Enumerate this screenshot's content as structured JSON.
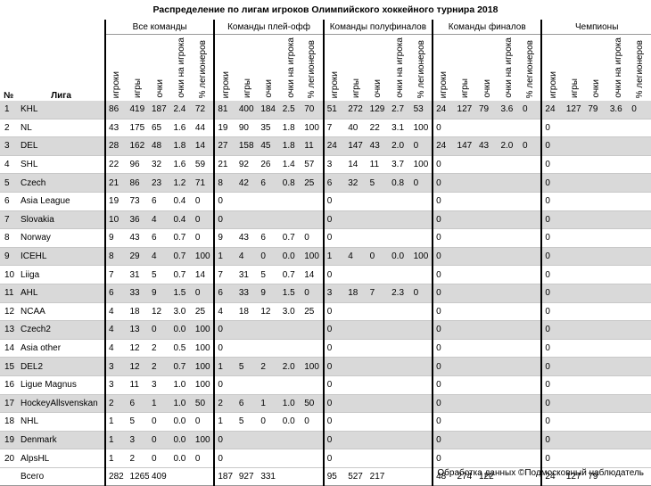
{
  "title": "Распределение по лигам игроков Олимпийского хоккейного турнира 2018",
  "columns": {
    "num": "№",
    "league": "Лига",
    "groups": [
      "Все команды",
      "Команды плей-офф",
      "Команды полуфиналов",
      "Команды финалов",
      "Чемпионы"
    ],
    "sub": [
      "игроки",
      "игры",
      "очки",
      "очки на игрока",
      "% легионеров"
    ]
  },
  "rows": [
    {
      "num": "1",
      "league": "KHL",
      "groups": [
        [
          "86",
          "419",
          "187",
          "2.4",
          "72"
        ],
        [
          "81",
          "400",
          "184",
          "2.5",
          "70"
        ],
        [
          "51",
          "272",
          "129",
          "2.7",
          "53"
        ],
        [
          "24",
          "127",
          "79",
          "3.6",
          "0"
        ],
        [
          "24",
          "127",
          "79",
          "3.6",
          "0"
        ]
      ]
    },
    {
      "num": "2",
      "league": "NL",
      "groups": [
        [
          "43",
          "175",
          "65",
          "1.6",
          "44"
        ],
        [
          "19",
          "90",
          "35",
          "1.8",
          "100"
        ],
        [
          "7",
          "40",
          "22",
          "3.1",
          "100"
        ],
        [
          "0"
        ],
        [
          "0"
        ]
      ]
    },
    {
      "num": "3",
      "league": "DEL",
      "groups": [
        [
          "28",
          "162",
          "48",
          "1.8",
          "14"
        ],
        [
          "27",
          "158",
          "45",
          "1.8",
          "11"
        ],
        [
          "24",
          "147",
          "43",
          "2.0",
          "0"
        ],
        [
          "24",
          "147",
          "43",
          "2.0",
          "0"
        ],
        [
          "0"
        ]
      ]
    },
    {
      "num": "4",
      "league": "SHL",
      "groups": [
        [
          "22",
          "96",
          "32",
          "1.6",
          "59"
        ],
        [
          "21",
          "92",
          "26",
          "1.4",
          "57"
        ],
        [
          "3",
          "14",
          "11",
          "3.7",
          "100"
        ],
        [
          "0"
        ],
        [
          "0"
        ]
      ]
    },
    {
      "num": "5",
      "league": "Czech",
      "groups": [
        [
          "21",
          "86",
          "23",
          "1.2",
          "71"
        ],
        [
          "8",
          "42",
          "6",
          "0.8",
          "25"
        ],
        [
          "6",
          "32",
          "5",
          "0.8",
          "0"
        ],
        [
          "0"
        ],
        [
          "0"
        ]
      ]
    },
    {
      "num": "6",
      "league": "Asia League",
      "groups": [
        [
          "19",
          "73",
          "6",
          "0.4",
          "0"
        ],
        [
          "0"
        ],
        [
          "0"
        ],
        [
          "0"
        ],
        [
          "0"
        ]
      ]
    },
    {
      "num": "7",
      "league": "Slovakia",
      "groups": [
        [
          "10",
          "36",
          "4",
          "0.4",
          "0"
        ],
        [
          "0"
        ],
        [
          "0"
        ],
        [
          "0"
        ],
        [
          "0"
        ]
      ]
    },
    {
      "num": "8",
      "league": "Norway",
      "groups": [
        [
          "9",
          "43",
          "6",
          "0.7",
          "0"
        ],
        [
          "9",
          "43",
          "6",
          "0.7",
          "0"
        ],
        [
          "0"
        ],
        [
          "0"
        ],
        [
          "0"
        ]
      ]
    },
    {
      "num": "9",
      "league": "ICEHL",
      "groups": [
        [
          "8",
          "29",
          "4",
          "0.7",
          "100"
        ],
        [
          "1",
          "4",
          "0",
          "0.0",
          "100"
        ],
        [
          "1",
          "4",
          "0",
          "0.0",
          "100"
        ],
        [
          "0"
        ],
        [
          "0"
        ]
      ]
    },
    {
      "num": "10",
      "league": "Liiga",
      "groups": [
        [
          "7",
          "31",
          "5",
          "0.7",
          "14"
        ],
        [
          "7",
          "31",
          "5",
          "0.7",
          "14"
        ],
        [
          "0"
        ],
        [
          "0"
        ],
        [
          "0"
        ]
      ]
    },
    {
      "num": "11",
      "league": "AHL",
      "groups": [
        [
          "6",
          "33",
          "9",
          "1.5",
          "0"
        ],
        [
          "6",
          "33",
          "9",
          "1.5",
          "0"
        ],
        [
          "3",
          "18",
          "7",
          "2.3",
          "0"
        ],
        [
          "0"
        ],
        [
          "0"
        ]
      ]
    },
    {
      "num": "12",
      "league": "NCAA",
      "groups": [
        [
          "4",
          "18",
          "12",
          "3.0",
          "25"
        ],
        [
          "4",
          "18",
          "12",
          "3.0",
          "25"
        ],
        [
          "0"
        ],
        [
          "0"
        ],
        [
          "0"
        ]
      ]
    },
    {
      "num": "13",
      "league": "Czech2",
      "groups": [
        [
          "4",
          "13",
          "0",
          "0.0",
          "100"
        ],
        [
          "0"
        ],
        [
          "0"
        ],
        [
          "0"
        ],
        [
          "0"
        ]
      ]
    },
    {
      "num": "14",
      "league": "Asia other",
      "groups": [
        [
          "4",
          "12",
          "2",
          "0.5",
          "100"
        ],
        [
          "0"
        ],
        [
          "0"
        ],
        [
          "0"
        ],
        [
          "0"
        ]
      ]
    },
    {
      "num": "15",
      "league": "DEL2",
      "groups": [
        [
          "3",
          "12",
          "2",
          "0.7",
          "100"
        ],
        [
          "1",
          "5",
          "2",
          "2.0",
          "100"
        ],
        [
          "0"
        ],
        [
          "0"
        ],
        [
          "0"
        ]
      ]
    },
    {
      "num": "16",
      "league": "Ligue Magnus",
      "groups": [
        [
          "3",
          "11",
          "3",
          "1.0",
          "100"
        ],
        [
          "0"
        ],
        [
          "0"
        ],
        [
          "0"
        ],
        [
          "0"
        ]
      ]
    },
    {
      "num": "17",
      "league": "HockeyAllsvenskan",
      "groups": [
        [
          "2",
          "6",
          "1",
          "1.0",
          "50"
        ],
        [
          "2",
          "6",
          "1",
          "1.0",
          "50"
        ],
        [
          "0"
        ],
        [
          "0"
        ],
        [
          "0"
        ]
      ]
    },
    {
      "num": "18",
      "league": "NHL",
      "groups": [
        [
          "1",
          "5",
          "0",
          "0.0",
          "0"
        ],
        [
          "1",
          "5",
          "0",
          "0.0",
          "0"
        ],
        [
          "0"
        ],
        [
          "0"
        ],
        [
          "0"
        ]
      ]
    },
    {
      "num": "19",
      "league": "Denmark",
      "groups": [
        [
          "1",
          "3",
          "0",
          "0.0",
          "100"
        ],
        [
          "0"
        ],
        [
          "0"
        ],
        [
          "0"
        ],
        [
          "0"
        ]
      ]
    },
    {
      "num": "20",
      "league": "AlpsHL",
      "groups": [
        [
          "1",
          "2",
          "0",
          "0.0",
          "0"
        ],
        [
          "0"
        ],
        [
          "0"
        ],
        [
          "0"
        ],
        [
          "0"
        ]
      ]
    }
  ],
  "total": {
    "label": "Всего",
    "groups": [
      [
        "282",
        "1265",
        "409"
      ],
      [
        "187",
        "927",
        "331"
      ],
      [
        "95",
        "527",
        "217"
      ],
      [
        "48",
        "274",
        "122"
      ],
      [
        "24",
        "127",
        "79"
      ]
    ]
  },
  "footer": "Обработка данных ©Подмосковный наблюдатель"
}
